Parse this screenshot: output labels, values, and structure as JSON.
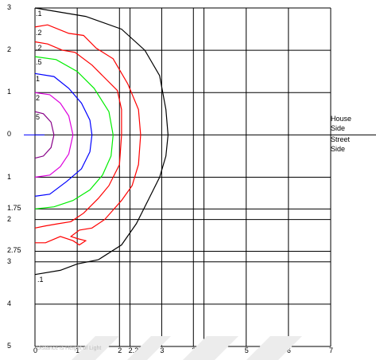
{
  "chart_data": {
    "type": "contour",
    "title": "",
    "xlabel": "",
    "ylabel": "",
    "xlim": [
      0,
      7
    ],
    "ylim": [
      -5,
      3
    ],
    "grid": true,
    "x_ticks": [
      0,
      1,
      2,
      2.25,
      3,
      3.75,
      4,
      5,
      6,
      7
    ],
    "x_tick_labels": [
      "0",
      "1",
      "2",
      "2.25",
      "3",
      "3.75",
      "4",
      "5",
      "6",
      "7"
    ],
    "y_ticks": [
      3,
      2,
      1,
      0,
      -1,
      -1.75,
      -2,
      -2.75,
      -3,
      -4,
      -5
    ],
    "y_tick_labels": [
      "3",
      "2",
      "1",
      "0",
      "1",
      "1.75",
      "2",
      "2.75",
      "3",
      "4",
      "5"
    ],
    "side_labels": {
      "upper": [
        "House",
        "Side"
      ],
      "lower": [
        "Street",
        "Side"
      ]
    },
    "series": [
      {
        "label": ".1",
        "color": "#000000",
        "points": [
          [
            0,
            3
          ],
          [
            1.2,
            2.8
          ],
          [
            2.05,
            2.5
          ],
          [
            2.6,
            2.0
          ],
          [
            2.95,
            1.4
          ],
          [
            3.1,
            0.6
          ],
          [
            3.15,
            0
          ],
          [
            3.1,
            -0.5
          ],
          [
            2.95,
            -1.0
          ],
          [
            2.7,
            -1.5
          ],
          [
            2.4,
            -2.1
          ],
          [
            2.05,
            -2.6
          ],
          [
            1.5,
            -2.95
          ],
          [
            1.0,
            -3.05
          ],
          [
            0.6,
            -3.2
          ],
          [
            0,
            -3.3
          ]
        ]
      },
      {
        "label": ".2",
        "color": "#ff0000",
        "points": [
          [
            0,
            2.55
          ],
          [
            0.3,
            2.6
          ],
          [
            0.8,
            2.4
          ],
          [
            1.15,
            2.35
          ],
          [
            1.45,
            2.05
          ],
          [
            1.85,
            1.8
          ],
          [
            2.2,
            1.2
          ],
          [
            2.45,
            0.6
          ],
          [
            2.5,
            0
          ],
          [
            2.45,
            -0.7
          ],
          [
            2.3,
            -1.2
          ],
          [
            2.05,
            -1.55
          ],
          [
            1.65,
            -2.0
          ],
          [
            1.35,
            -2.2
          ],
          [
            1.05,
            -2.25
          ],
          [
            0.85,
            -2.4
          ],
          [
            1.0,
            -2.45
          ],
          [
            1.2,
            -2.5
          ],
          [
            1.05,
            -2.6
          ],
          [
            0.9,
            -2.5
          ],
          [
            0.6,
            -2.4
          ],
          [
            0.25,
            -2.55
          ],
          [
            0,
            -2.55
          ]
        ]
      },
      {
        "label": ".2",
        "color": "#ff0000",
        "points": [
          [
            0,
            2.2
          ],
          [
            0.3,
            2.15
          ],
          [
            0.65,
            2.0
          ],
          [
            0.95,
            1.95
          ],
          [
            1.35,
            1.65
          ],
          [
            1.6,
            1.4
          ],
          [
            1.95,
            1.05
          ],
          [
            2.05,
            0.6
          ],
          [
            2.05,
            0
          ],
          [
            2.0,
            -0.7
          ],
          [
            1.75,
            -1.2
          ],
          [
            1.5,
            -1.5
          ],
          [
            1.15,
            -1.85
          ],
          [
            0.85,
            -2.05
          ],
          [
            0.55,
            -2.1
          ],
          [
            0.25,
            -2.15
          ],
          [
            0,
            -2.2
          ]
        ]
      },
      {
        "label": ".5",
        "color": "#00ee00",
        "points": [
          [
            0,
            1.85
          ],
          [
            0.5,
            1.78
          ],
          [
            1.0,
            1.5
          ],
          [
            1.4,
            1.1
          ],
          [
            1.75,
            0.55
          ],
          [
            1.85,
            0
          ],
          [
            1.8,
            -0.5
          ],
          [
            1.6,
            -0.95
          ],
          [
            1.3,
            -1.3
          ],
          [
            0.9,
            -1.55
          ],
          [
            0.45,
            -1.7
          ],
          [
            0,
            -1.75
          ]
        ]
      },
      {
        "label": "1",
        "color": "#0000ff",
        "points": [
          [
            0,
            1.45
          ],
          [
            0.45,
            1.38
          ],
          [
            0.8,
            1.1
          ],
          [
            1.1,
            0.75
          ],
          [
            1.3,
            0.35
          ],
          [
            1.35,
            0
          ],
          [
            1.3,
            -0.4
          ],
          [
            1.1,
            -0.8
          ],
          [
            0.75,
            -1.1
          ],
          [
            0.35,
            -1.4
          ],
          [
            0,
            -1.45
          ]
        ]
      },
      {
        "label": "2",
        "color": "#dd00dd",
        "points": [
          [
            0,
            1.0
          ],
          [
            0.35,
            0.95
          ],
          [
            0.6,
            0.75
          ],
          [
            0.8,
            0.45
          ],
          [
            0.9,
            0
          ],
          [
            0.8,
            -0.45
          ],
          [
            0.6,
            -0.75
          ],
          [
            0.35,
            -0.95
          ],
          [
            0,
            -1.0
          ]
        ]
      },
      {
        "label": "5",
        "color": "#880088",
        "points": [
          [
            0,
            0.55
          ],
          [
            0.2,
            0.5
          ],
          [
            0.38,
            0.3
          ],
          [
            0.45,
            0
          ],
          [
            0.38,
            -0.3
          ],
          [
            0.2,
            -0.5
          ],
          [
            0,
            -0.55
          ]
        ]
      }
    ]
  },
  "watermark_text": "Distance is Height of Light"
}
